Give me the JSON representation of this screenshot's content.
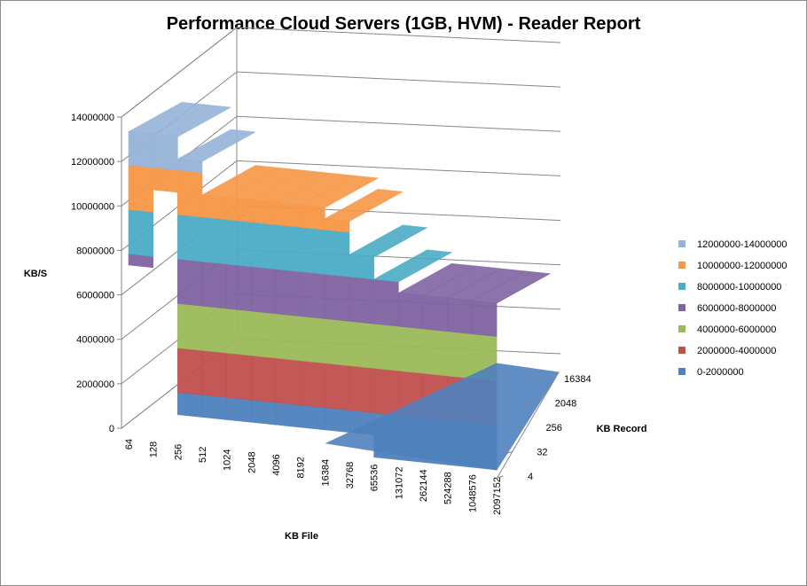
{
  "chart_data": {
    "type": "surface",
    "title": "Performance Cloud Servers (1GB, HVM) - Reader Report",
    "ylabel": "KB/S",
    "xlabel": "KB File",
    "zlabel": "KB Record",
    "ylim": [
      0,
      14000000
    ],
    "yticks": [
      "0",
      "2000000",
      "4000000",
      "6000000",
      "8000000",
      "10000000",
      "12000000",
      "14000000"
    ],
    "x_categories": [
      "64",
      "128",
      "256",
      "512",
      "1024",
      "2048",
      "4096",
      "8192",
      "16384",
      "32768",
      "65536",
      "131072",
      "262144",
      "524288",
      "1048576",
      "2097152"
    ],
    "z_categories": [
      "4",
      "32",
      "256",
      "2048",
      "16384"
    ],
    "legend": [
      {
        "label": "12000000-14000000",
        "color": "#95b3d7"
      },
      {
        "label": "10000000-12000000",
        "color": "#f79646"
      },
      {
        "label": "8000000-10000000",
        "color": "#4bacc6"
      },
      {
        "label": "6000000-8000000",
        "color": "#8064a2"
      },
      {
        "label": "4000000-6000000",
        "color": "#9bbb59"
      },
      {
        "label": "2000000-4000000",
        "color": "#c0504d"
      },
      {
        "label": "0-2000000",
        "color": "#4f81bd"
      }
    ],
    "legend_position": "right",
    "grid": true,
    "values_by_file": [
      {
        "file": "64",
        "min": 7500000,
        "peak": 13500000
      },
      {
        "file": "128",
        "min": 11000000,
        "peak": 13500000
      },
      {
        "file": "256",
        "min": 1000000,
        "peak": 12500000
      },
      {
        "file": "512",
        "min": 1000000,
        "peak": 11000000
      },
      {
        "file": "1024",
        "min": 1000000,
        "peak": 11000000
      },
      {
        "file": "2048",
        "min": 1000000,
        "peak": 11000000
      },
      {
        "file": "4096",
        "min": 1000000,
        "peak": 11000000
      },
      {
        "file": "8192",
        "min": 1000000,
        "peak": 11000000
      },
      {
        "file": "16384",
        "min": 1000000,
        "peak": 10500000
      },
      {
        "file": "32768",
        "min": 1000000,
        "peak": 9000000
      },
      {
        "file": "65536",
        "min": 0,
        "peak": 8000000
      },
      {
        "file": "131072",
        "min": 0,
        "peak": 7500000
      },
      {
        "file": "262144",
        "min": 0,
        "peak": 7500000
      },
      {
        "file": "524288",
        "min": 0,
        "peak": 7500000
      },
      {
        "file": "1048576",
        "min": 0,
        "peak": 7500000
      },
      {
        "file": "2097152",
        "min": 0,
        "peak": 7500000
      }
    ]
  }
}
